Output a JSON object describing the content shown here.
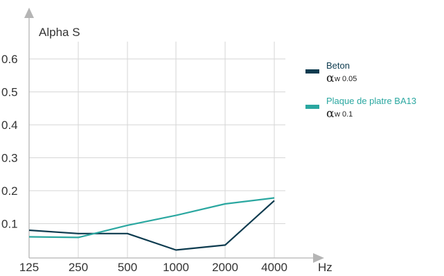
{
  "chart_data": {
    "type": "line",
    "title": "",
    "ylabel": "Alpha S",
    "xlabel": "Hz",
    "categories": [
      "125",
      "250",
      "500",
      "1000",
      "2000",
      "4000"
    ],
    "ylim": [
      0,
      0.65
    ],
    "yticks": [
      "0.1",
      "0.2",
      "0.3",
      "0.4",
      "0.5",
      "0.6"
    ],
    "grid": true,
    "legend_position": "right",
    "series": [
      {
        "name": "Beton",
        "alpha_label": "α",
        "alpha_value": "w 0.05",
        "color": "#0d3b4f",
        "values": [
          0.08,
          0.07,
          0.07,
          0.02,
          0.035,
          0.17
        ]
      },
      {
        "name": "Plaque de platre BA13",
        "alpha_label": "α",
        "alpha_value": "w 0.1",
        "color": "#2aa7a0",
        "values": [
          0.06,
          0.058,
          0.095,
          0.125,
          0.16,
          0.178
        ]
      }
    ]
  }
}
